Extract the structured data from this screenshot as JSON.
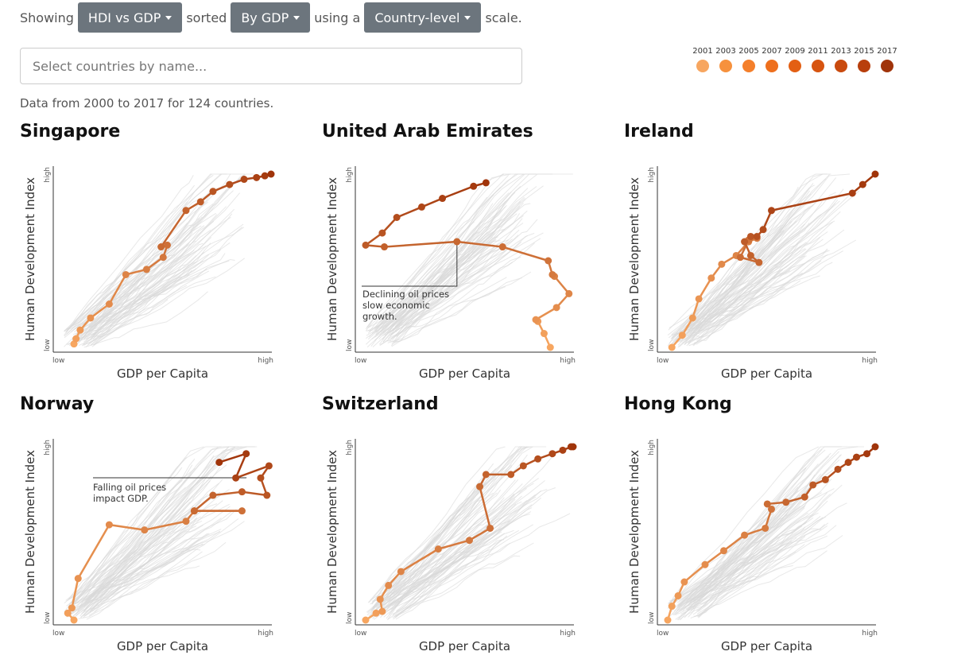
{
  "controls": {
    "showing_label": "Showing",
    "metric_label": "HDI vs GDP",
    "sorted_label": "sorted",
    "sort_label": "By GDP",
    "using_label": "using a",
    "scale_label": "Country-level",
    "scale_suffix": "scale."
  },
  "search": {
    "placeholder": "Select countries by name..."
  },
  "info_text": "Data from 2000 to 2017 for 124 countries.",
  "legend": {
    "years": [
      "2001",
      "2003",
      "2005",
      "2007",
      "2009",
      "2011",
      "2013",
      "2015",
      "2017"
    ],
    "colors": [
      "#f7a660",
      "#f6913d",
      "#f47f2b",
      "#ee6f1d",
      "#e35f13",
      "#d75410",
      "#c94a0e",
      "#b83f0c",
      "#a0340a"
    ]
  },
  "axis": {
    "x_title": "GDP per Capita",
    "y_title": "Human Development Index",
    "low": "low",
    "high": "high"
  },
  "chart_data": [
    {
      "type": "line",
      "title": "Singapore",
      "xlabel": "GDP per Capita",
      "ylabel": "Human Development Index",
      "xlim": [
        0,
        1
      ],
      "ylim": [
        0,
        1
      ],
      "series": [
        {
          "x": [
            0.05,
            0.06,
            0.08,
            0.13,
            0.22,
            0.3,
            0.4,
            0.48,
            0.5,
            0.47,
            0.59,
            0.66,
            0.72,
            0.8,
            0.87,
            0.93,
            0.97,
            1.0
          ],
          "y": [
            0.02,
            0.05,
            0.1,
            0.17,
            0.25,
            0.42,
            0.45,
            0.52,
            0.59,
            0.58,
            0.79,
            0.84,
            0.9,
            0.94,
            0.97,
            0.98,
            0.99,
            1.0
          ]
        }
      ]
    },
    {
      "type": "line",
      "title": "United Arab Emirates",
      "xlabel": "GDP per Capita",
      "ylabel": "Human Development Index",
      "xlim": [
        0,
        1
      ],
      "ylim": [
        0,
        1
      ],
      "annotation": {
        "text": [
          "Declining oil prices",
          "slow economic",
          "growth."
        ],
        "x": 0.44,
        "y": 0.61
      },
      "series": [
        {
          "x": [
            0.89,
            0.86,
            0.83,
            0.82,
            0.92,
            0.98,
            0.91,
            0.9,
            0.88,
            0.66,
            0.44,
            0.09,
            0.0,
            0.08,
            0.15,
            0.27,
            0.37,
            0.52,
            0.58
          ],
          "y": [
            0.0,
            0.08,
            0.15,
            0.16,
            0.23,
            0.31,
            0.41,
            0.42,
            0.5,
            0.58,
            0.61,
            0.58,
            0.59,
            0.66,
            0.75,
            0.81,
            0.86,
            0.93,
            0.95
          ]
        }
      ]
    },
    {
      "type": "line",
      "title": "Ireland",
      "xlabel": "GDP per Capita",
      "ylabel": "Human Development Index",
      "xlim": [
        0,
        1
      ],
      "ylim": [
        0,
        1
      ],
      "series": [
        {
          "x": [
            0.02,
            0.07,
            0.12,
            0.15,
            0.21,
            0.26,
            0.33,
            0.39,
            0.43,
            0.39,
            0.35,
            0.44,
            0.4,
            0.37,
            0.4,
            0.43,
            0.46,
            0.5,
            0.89,
            0.94,
            1.0
          ],
          "y": [
            0.0,
            0.07,
            0.17,
            0.28,
            0.4,
            0.48,
            0.53,
            0.61,
            0.63,
            0.62,
            0.52,
            0.49,
            0.53,
            0.61,
            0.64,
            0.64,
            0.68,
            0.79,
            0.89,
            0.94,
            1.0
          ]
        }
      ]
    },
    {
      "type": "line",
      "title": "Norway",
      "xlabel": "GDP per Capita",
      "ylabel": "Human Development Index",
      "xlim": [
        0,
        1
      ],
      "ylim": [
        0,
        1
      ],
      "annotation": {
        "text": [
          "Falling oil prices",
          "impact GDP."
        ],
        "x": 0.88,
        "y": 0.82
      },
      "series": [
        {
          "x": [
            0.05,
            0.02,
            0.04,
            0.07,
            0.22,
            0.39,
            0.59,
            0.63,
            0.86,
            0.63,
            0.72,
            0.86,
            0.98,
            0.95,
            0.99,
            0.83,
            0.88,
            0.75
          ],
          "y": [
            0.0,
            0.04,
            0.07,
            0.24,
            0.55,
            0.52,
            0.57,
            0.63,
            0.63,
            0.63,
            0.72,
            0.74,
            0.72,
            0.82,
            0.89,
            0.82,
            0.96,
            0.91
          ]
        }
      ]
    },
    {
      "type": "line",
      "title": "Switzerland",
      "xlabel": "GDP per Capita",
      "ylabel": "Human Development Index",
      "xlim": [
        0,
        1
      ],
      "ylim": [
        0,
        1
      ],
      "series": [
        {
          "x": [
            0.0,
            0.05,
            0.08,
            0.07,
            0.11,
            0.17,
            0.35,
            0.5,
            0.6,
            0.55,
            0.58,
            0.7,
            0.76,
            0.83,
            0.9,
            0.95,
            0.99,
            1.0
          ],
          "y": [
            0.0,
            0.04,
            0.05,
            0.12,
            0.2,
            0.28,
            0.41,
            0.46,
            0.53,
            0.77,
            0.84,
            0.84,
            0.89,
            0.93,
            0.96,
            0.98,
            1.0,
            1.0
          ]
        }
      ]
    },
    {
      "type": "line",
      "title": "Hong Kong",
      "xlabel": "GDP per Capita",
      "ylabel": "Human Development Index",
      "xlim": [
        0,
        1
      ],
      "ylim": [
        0,
        1
      ],
      "series": [
        {
          "x": [
            0.0,
            0.02,
            0.05,
            0.08,
            0.18,
            0.27,
            0.37,
            0.47,
            0.5,
            0.48,
            0.57,
            0.66,
            0.7,
            0.76,
            0.82,
            0.87,
            0.91,
            0.96,
            1.0
          ],
          "y": [
            0.0,
            0.08,
            0.14,
            0.22,
            0.32,
            0.4,
            0.49,
            0.53,
            0.64,
            0.67,
            0.68,
            0.71,
            0.78,
            0.81,
            0.87,
            0.91,
            0.94,
            0.96,
            1.0
          ]
        }
      ]
    }
  ]
}
